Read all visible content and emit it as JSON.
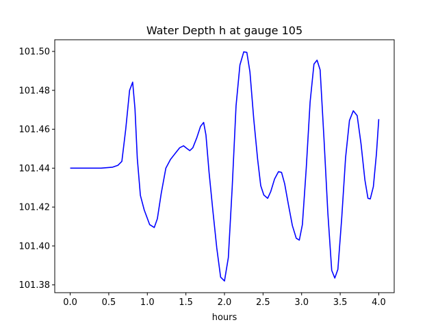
{
  "chart_data": {
    "type": "line",
    "title": "Water Depth h at gauge 105",
    "xlabel": "hours",
    "ylabel": "",
    "xlim": [
      -0.2,
      4.2
    ],
    "ylim": [
      101.376,
      101.506
    ],
    "x_ticks": [
      0.0,
      0.5,
      1.0,
      1.5,
      2.0,
      2.5,
      3.0,
      3.5,
      4.0
    ],
    "x_tick_labels": [
      "0.0",
      "0.5",
      "1.0",
      "1.5",
      "2.0",
      "2.5",
      "3.0",
      "3.5",
      "4.0"
    ],
    "y_ticks": [
      101.38,
      101.4,
      101.42,
      101.44,
      101.46,
      101.48,
      101.5
    ],
    "y_tick_labels": [
      "101.38",
      "101.40",
      "101.42",
      "101.44",
      "101.46",
      "101.48",
      "101.50"
    ],
    "grid": false,
    "legend": "none",
    "series": [
      {
        "color": "#0000ff",
        "x": [
          0.0,
          0.2,
          0.4,
          0.55,
          0.62,
          0.67,
          0.72,
          0.77,
          0.81,
          0.84,
          0.87,
          0.91,
          0.96,
          1.03,
          1.09,
          1.13,
          1.18,
          1.24,
          1.3,
          1.36,
          1.42,
          1.47,
          1.51,
          1.55,
          1.59,
          1.64,
          1.69,
          1.73,
          1.76,
          1.8,
          1.85,
          1.9,
          1.95,
          2.0,
          2.05,
          2.1,
          2.15,
          2.2,
          2.25,
          2.29,
          2.33,
          2.38,
          2.43,
          2.47,
          2.51,
          2.56,
          2.6,
          2.65,
          2.7,
          2.74,
          2.78,
          2.83,
          2.88,
          2.93,
          2.97,
          3.01,
          3.06,
          3.11,
          3.16,
          3.2,
          3.24,
          3.29,
          3.34,
          3.39,
          3.43,
          3.47,
          3.52,
          3.57,
          3.62,
          3.67,
          3.72,
          3.77,
          3.82,
          3.86,
          3.89,
          3.93,
          3.97,
          4.0
        ],
        "y": [
          101.44,
          101.44,
          101.44,
          101.4405,
          101.4415,
          101.4435,
          101.46,
          101.48,
          101.4842,
          101.4705,
          101.445,
          101.426,
          101.4185,
          101.411,
          101.4095,
          101.414,
          101.427,
          101.44,
          101.4445,
          101.4475,
          101.4505,
          101.4515,
          101.4502,
          101.449,
          101.4505,
          101.4555,
          101.4615,
          101.4635,
          101.457,
          101.438,
          101.418,
          101.399,
          101.384,
          101.382,
          101.394,
          101.43,
          101.472,
          101.493,
          101.4998,
          101.4995,
          101.4895,
          101.465,
          101.4445,
          101.431,
          101.4262,
          101.4245,
          101.428,
          101.4345,
          101.4382,
          101.4378,
          101.432,
          101.421,
          101.4105,
          101.404,
          101.403,
          101.411,
          101.44,
          101.474,
          101.4935,
          101.4955,
          101.4905,
          101.455,
          101.417,
          101.3875,
          101.3835,
          101.388,
          101.4145,
          101.4455,
          101.4645,
          101.4695,
          101.467,
          101.4525,
          101.434,
          101.4245,
          101.4242,
          101.4305,
          101.4475,
          101.4652
        ]
      }
    ]
  }
}
